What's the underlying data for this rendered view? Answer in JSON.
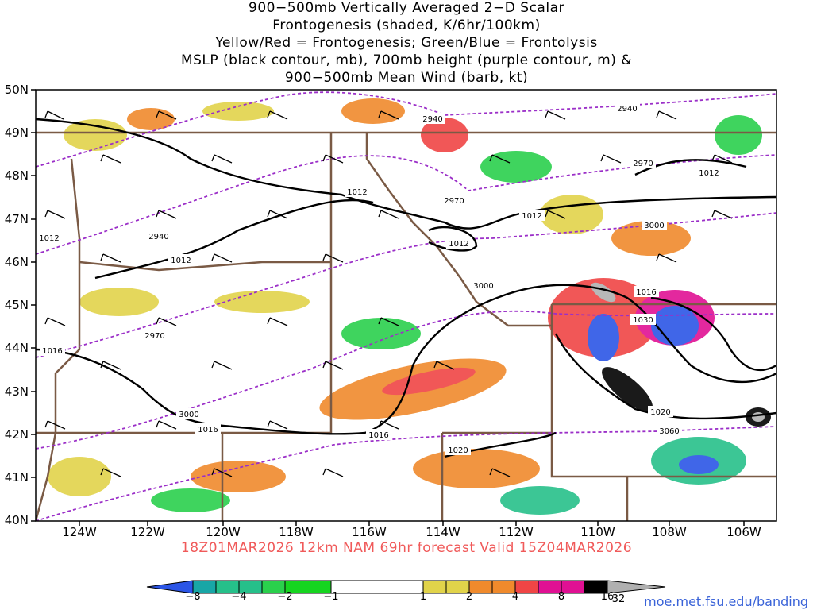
{
  "title": {
    "line1": "900−500mb Vertically Averaged 2−D Scalar",
    "line2": "Frontogenesis (shaded, K/6hr/100km)",
    "line3": "Yellow/Red = Frontogenesis;  Green/Blue = Frontolysis",
    "line4": "MSLP (black contour, mb), 700mb height (purple contour, m) &",
    "line5": "900−500mb Mean Wind (barb, kt)"
  },
  "lat_labels": [
    "50N",
    "49N",
    "48N",
    "47N",
    "46N",
    "45N",
    "44N",
    "43N",
    "42N",
    "41N",
    "40N"
  ],
  "lon_labels": [
    "124W",
    "122W",
    "120W",
    "118W",
    "116W",
    "114W",
    "112W",
    "110W",
    "108W",
    "106W"
  ],
  "valid_line": "18Z01MAR2026 12km NAM 69hr forecast Valid 15Z04MAR2026",
  "credit": "moe.met.fsu.edu/banding",
  "colorbar": {
    "labels": [
      "−8",
      "−4",
      "−2",
      "−1",
      "1",
      "2",
      "4",
      "8",
      "16",
      "32"
    ],
    "colors": [
      "#2b55e6",
      "#18a6a6",
      "#26c08a",
      "#2ad04c",
      "#16d520",
      "#ffffff",
      "#e1d34a",
      "#f08a2c",
      "#f04545",
      "#e01093",
      "#000000",
      "#b0b0b0"
    ]
  },
  "mslp_labels": [
    "1012",
    "1012",
    "1012",
    "1012",
    "1012",
    "1012",
    "1016",
    "1016",
    "1016",
    "1016",
    "1020",
    "1020",
    "1030"
  ],
  "height_labels": [
    "2940",
    "2940",
    "2940",
    "2970",
    "2970",
    "2970",
    "3000",
    "3000",
    "3000",
    "3060"
  ],
  "colors": {
    "mslp": "#000000",
    "height": "#9b2fc8",
    "borders": "#7a5a45",
    "valid_text": "#f05a5a",
    "credit": "#3a63d8"
  }
}
